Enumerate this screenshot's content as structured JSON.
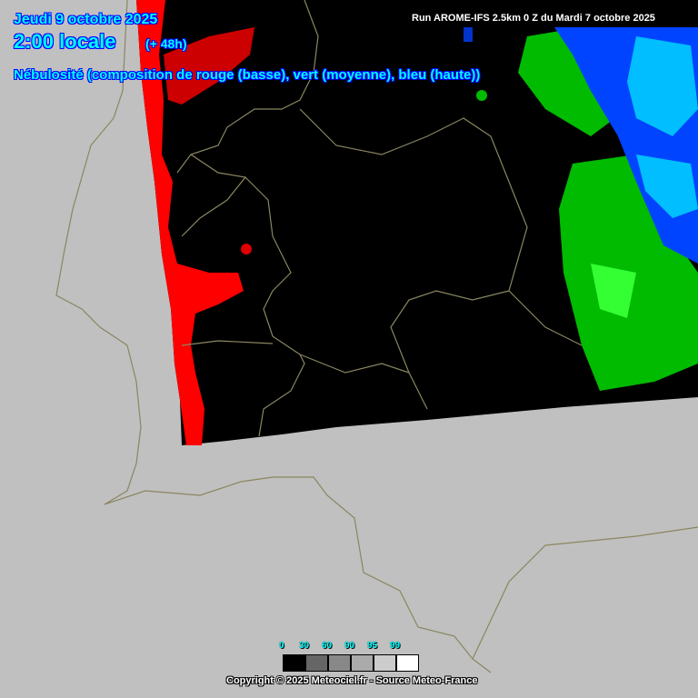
{
  "header": {
    "date": "Jeudi 9 octobre 2025",
    "time": "2:00 locale",
    "lead": "(+ 48h)",
    "description": "Nébulosité (composition de rouge (basse), vert (moyenne), bleu (haute))",
    "run": "Run AROME-IFS 2.5km 0 Z du Mardi 7 octobre 2025"
  },
  "legend": {
    "labels": [
      "0",
      "30",
      "60",
      "90",
      "95",
      "99"
    ],
    "colors": [
      "#000000",
      "#666666",
      "#888888",
      "#aaaaaa",
      "#cccccc",
      "#ffffff"
    ]
  },
  "colors": {
    "land_sea": "#c0c0c0",
    "borders": "#8a8660",
    "low_cloud": "#ff0000",
    "mid_cloud": "#00cc00",
    "high_cloud": "#0044ff"
  },
  "footer": {
    "copyright": "Copyright © 2025 Meteociel.fr - Source Meteo-France"
  }
}
